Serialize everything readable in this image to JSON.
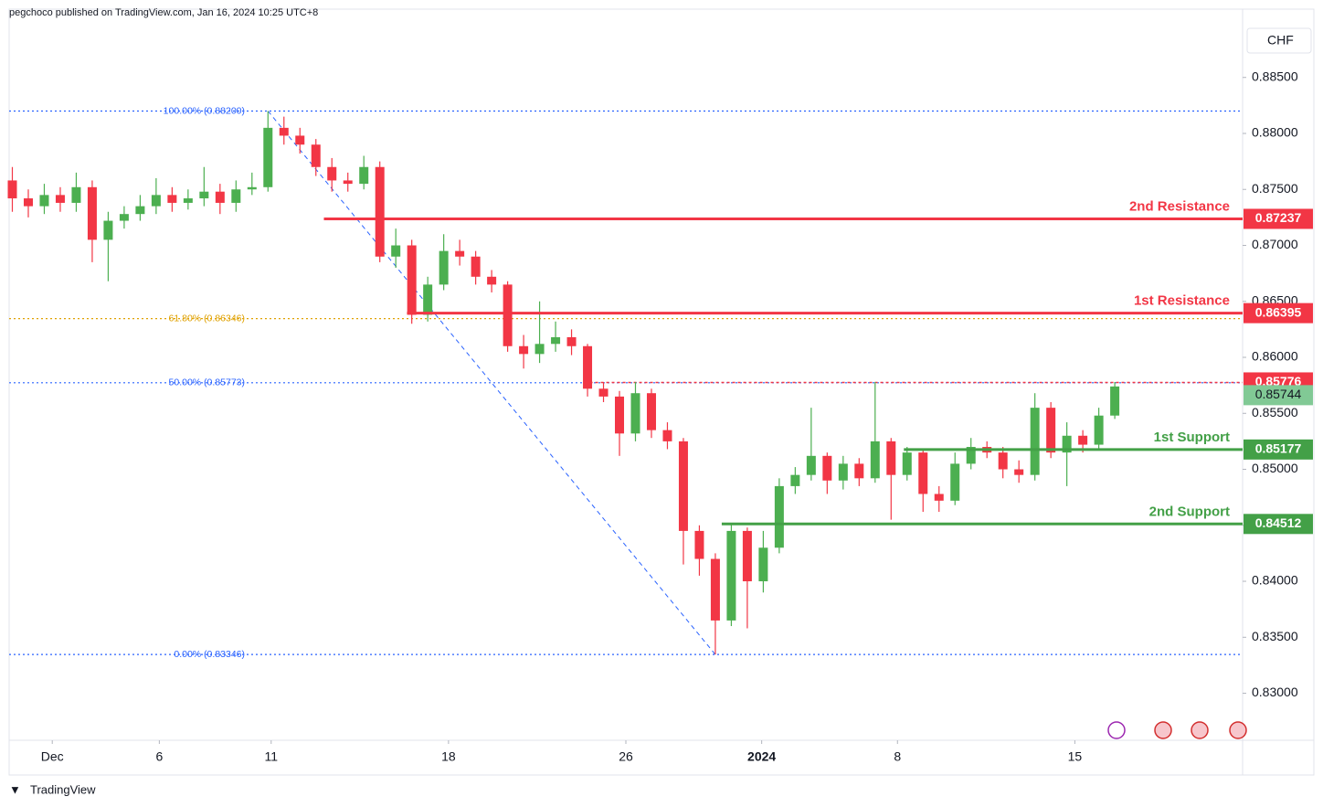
{
  "header": "pegchoco published on TradingView.com, Jan 16, 2024 10:25 UTC+8",
  "footer": "TradingView",
  "chart_data": {
    "type": "candlestick",
    "currency": "CHF",
    "xlim": [
      -0.2,
      77
    ],
    "xticks": [
      {
        "value": 2.5,
        "label": "Dec"
      },
      {
        "value": 9.2,
        "label": "6"
      },
      {
        "value": 16.2,
        "label": "11"
      },
      {
        "value": 27.3,
        "label": "18"
      },
      {
        "value": 38.4,
        "label": "26"
      },
      {
        "value": 46.9,
        "label": "2024"
      },
      {
        "value": 55.4,
        "label": "8"
      },
      {
        "value": 66.5,
        "label": "15"
      }
    ],
    "ylim": [
      0.8258,
      0.8911
    ],
    "yticks": [
      {
        "value": 0.885,
        "label": "0.88500"
      },
      {
        "value": 0.88,
        "label": "0.88000"
      },
      {
        "value": 0.875,
        "label": "0.87500"
      },
      {
        "value": 0.87,
        "label": "0.87000"
      },
      {
        "value": 0.865,
        "label": "0.86500"
      },
      {
        "value": 0.86,
        "label": "0.86000"
      },
      {
        "value": 0.855,
        "label": "0.85500"
      },
      {
        "value": 0.85,
        "label": "0.85000"
      },
      {
        "value": 0.845,
        "label": "0.84500"
      },
      {
        "value": 0.84,
        "label": "0.84000"
      },
      {
        "value": 0.835,
        "label": "0.83500"
      },
      {
        "value": 0.83,
        "label": "0.83000"
      }
    ],
    "up_color": "#4caf50",
    "down_color": "#f23645",
    "open": [
      0.8758,
      0.8742,
      0.8735,
      0.8745,
      0.8738,
      0.8752,
      0.8705,
      0.8722,
      0.8728,
      0.8735,
      0.8745,
      0.8738,
      0.8742,
      0.8748,
      0.8738,
      0.875,
      0.8752,
      0.8805,
      0.8798,
      0.879,
      0.877,
      0.8758,
      0.8755,
      0.877,
      0.869,
      0.87,
      0.8638,
      0.8665,
      0.8695,
      0.869,
      0.8672,
      0.8665,
      0.861,
      0.8603,
      0.8612,
      0.8618,
      0.861,
      0.8572,
      0.8565,
      0.8532,
      0.8568,
      0.8535,
      0.8525,
      0.8445,
      0.842,
      0.8365,
      0.8445,
      0.84,
      0.843,
      0.8485,
      0.8495,
      0.8512,
      0.849,
      0.8505,
      0.8492,
      0.8525,
      0.8495,
      0.8515,
      0.8478,
      0.8472,
      0.8505,
      0.852,
      0.8515,
      0.85,
      0.8495,
      0.8555,
      0.8515,
      0.853,
      0.8522,
      0.8548
    ],
    "high": [
      0.877,
      0.875,
      0.8755,
      0.8752,
      0.8765,
      0.8758,
      0.873,
      0.8735,
      0.8745,
      0.876,
      0.8752,
      0.875,
      0.877,
      0.8755,
      0.8758,
      0.8765,
      0.882,
      0.8815,
      0.8805,
      0.8795,
      0.8778,
      0.8765,
      0.878,
      0.8775,
      0.8715,
      0.8705,
      0.8672,
      0.871,
      0.8705,
      0.8695,
      0.8678,
      0.8668,
      0.862,
      0.865,
      0.8632,
      0.8625,
      0.8612,
      0.8578,
      0.857,
      0.8578,
      0.8572,
      0.8542,
      0.8528,
      0.845,
      0.8425,
      0.8452,
      0.8448,
      0.8445,
      0.8492,
      0.8502,
      0.8555,
      0.8515,
      0.8512,
      0.851,
      0.8578,
      0.8528,
      0.852,
      0.8518,
      0.8485,
      0.8515,
      0.8528,
      0.8525,
      0.852,
      0.8508,
      0.8568,
      0.856,
      0.8542,
      0.8535,
      0.8555,
      0.8578
    ],
    "low": [
      0.873,
      0.8725,
      0.8728,
      0.873,
      0.873,
      0.8685,
      0.8668,
      0.8715,
      0.8722,
      0.8728,
      0.873,
      0.8732,
      0.8735,
      0.8728,
      0.873,
      0.8745,
      0.8748,
      0.879,
      0.8782,
      0.8762,
      0.8748,
      0.8748,
      0.875,
      0.8685,
      0.868,
      0.863,
      0.8632,
      0.866,
      0.8682,
      0.8665,
      0.8658,
      0.8605,
      0.859,
      0.8595,
      0.8605,
      0.8602,
      0.8565,
      0.856,
      0.8512,
      0.8525,
      0.8528,
      0.8518,
      0.8415,
      0.8405,
      0.83346,
      0.836,
      0.8358,
      0.839,
      0.8425,
      0.8478,
      0.849,
      0.8478,
      0.8482,
      0.8485,
      0.8488,
      0.8455,
      0.849,
      0.8462,
      0.8462,
      0.8468,
      0.85,
      0.851,
      0.8492,
      0.8488,
      0.849,
      0.851,
      0.8485,
      0.8515,
      0.8518,
      0.8545
    ],
    "close": [
      0.8742,
      0.8735,
      0.8745,
      0.8738,
      0.8752,
      0.8705,
      0.8722,
      0.8728,
      0.8735,
      0.8745,
      0.8738,
      0.8742,
      0.8748,
      0.8738,
      0.875,
      0.8752,
      0.8805,
      0.8798,
      0.879,
      0.877,
      0.8758,
      0.8755,
      0.877,
      0.869,
      0.87,
      0.8638,
      0.8665,
      0.8695,
      0.869,
      0.8672,
      0.8665,
      0.861,
      0.8603,
      0.8612,
      0.8618,
      0.861,
      0.8572,
      0.8565,
      0.8532,
      0.8568,
      0.8535,
      0.8525,
      0.8445,
      0.842,
      0.8365,
      0.8445,
      0.84,
      0.843,
      0.8485,
      0.8495,
      0.8512,
      0.849,
      0.8505,
      0.8492,
      0.8525,
      0.8495,
      0.8515,
      0.8478,
      0.8472,
      0.8505,
      0.852,
      0.8515,
      0.85,
      0.8495,
      0.8555,
      0.8515,
      0.853,
      0.8522,
      0.8548,
      0.8574
    ],
    "fib_levels": [
      {
        "label": "100.00% (0.88200)",
        "value": 0.882,
        "color": "#2962ff"
      },
      {
        "label": "61.80% (0.86346)",
        "value": 0.86346,
        "color": "#e0a100"
      },
      {
        "label": "50.00% (0.85773)",
        "value": 0.85773,
        "color": "#2962ff"
      },
      {
        "label": "0.00% (0.83346)",
        "value": 0.83346,
        "color": "#2962ff"
      }
    ],
    "levels": [
      {
        "name": "2nd Resistance",
        "value": 0.87237,
        "color": "#f23645",
        "start": 19.5
      },
      {
        "name": "1st Resistance",
        "value": 0.86395,
        "color": "#f23645",
        "start": 24.7
      },
      {
        "name": "1st Support",
        "value": 0.85177,
        "color": "#43a047",
        "start": 55.8
      },
      {
        "name": "2nd Support",
        "value": 0.84512,
        "color": "#43a047",
        "start": 44.4
      }
    ],
    "high_marker": {
      "value": 0.85776,
      "color": "#f23645",
      "start": 35.8
    },
    "last_price": {
      "value": 0.85744,
      "color": "#81c995"
    }
  }
}
